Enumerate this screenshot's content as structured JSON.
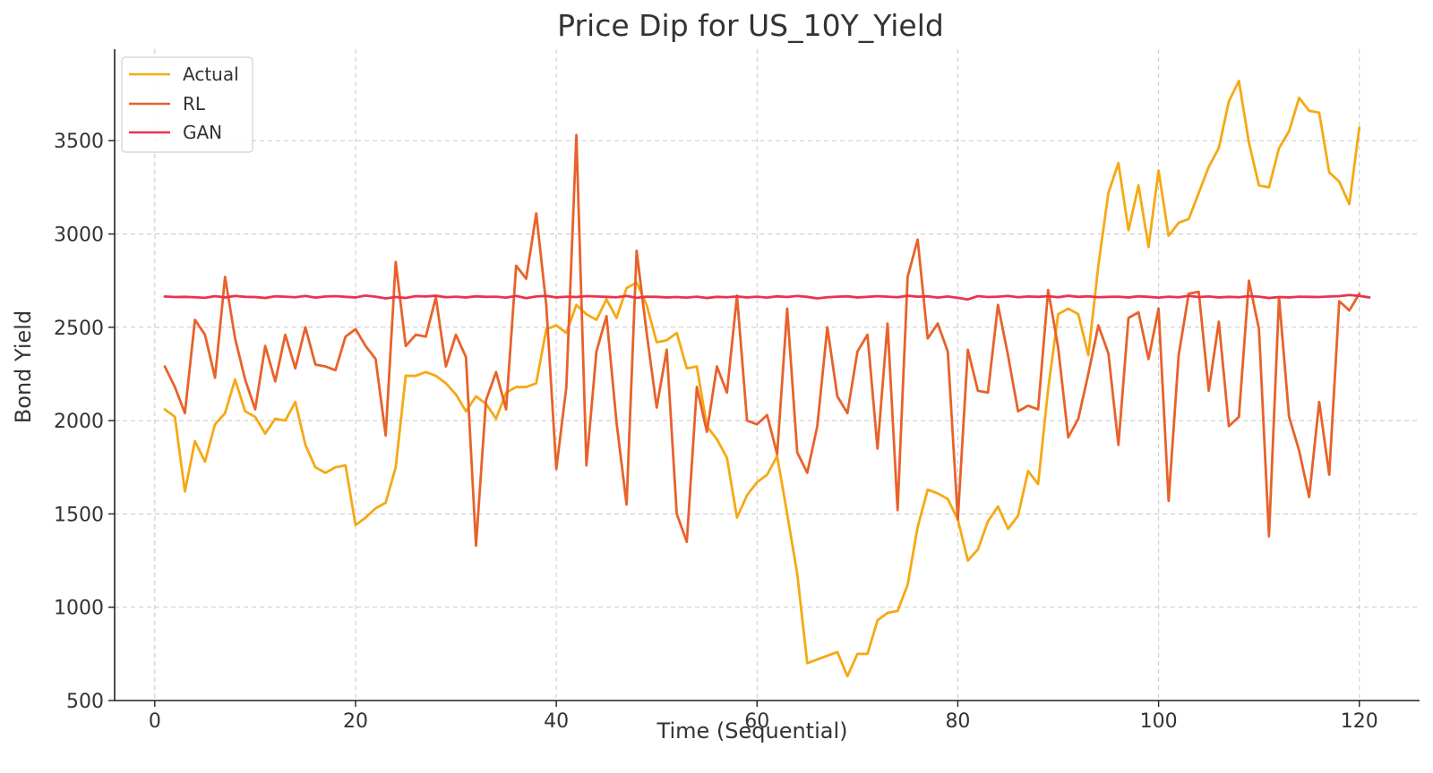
{
  "chart_data": {
    "type": "line",
    "title": "Price Dip for US_10Y_Yield",
    "xlabel": "Time (Sequential)",
    "ylabel": "Bond Yield",
    "xlim": [
      -4,
      126
    ],
    "ylim": [
      500,
      3990
    ],
    "xticks": [
      0,
      20,
      40,
      60,
      80,
      100,
      120
    ],
    "yticks": [
      500,
      1000,
      1500,
      2000,
      2500,
      3000,
      3500
    ],
    "grid": true,
    "legend": "top-left",
    "series": [
      {
        "name": "Actual",
        "color": "#f5a914",
        "x_start": 1,
        "values": [
          2060,
          2020,
          1620,
          1890,
          1780,
          1980,
          2040,
          2220,
          2050,
          2020,
          1930,
          2010,
          2000,
          2100,
          1870,
          1750,
          1720,
          1750,
          1760,
          1440,
          1480,
          1530,
          1560,
          1750,
          2240,
          2240,
          2260,
          2240,
          2200,
          2140,
          2050,
          2130,
          2090,
          2010,
          2150,
          2180,
          2180,
          2200,
          2490,
          2510,
          2470,
          2620,
          2570,
          2540,
          2650,
          2550,
          2710,
          2740,
          2620,
          2420,
          2430,
          2470,
          2280,
          2290,
          1970,
          1900,
          1800,
          1480,
          1600,
          1670,
          1710,
          1810,
          1500,
          1180,
          700,
          720,
          740,
          760,
          630,
          750,
          750,
          930,
          970,
          980,
          1120,
          1430,
          1630,
          1610,
          1580,
          1470,
          1250,
          1310,
          1460,
          1540,
          1420,
          1490,
          1730,
          1660,
          2170,
          2570,
          2600,
          2570,
          2350,
          2830,
          3220,
          3380,
          3020,
          3260,
          2930,
          3340,
          2990,
          3060,
          3080,
          3220,
          3360,
          3460,
          3710,
          3820,
          3490,
          3260,
          3250,
          3460,
          3550,
          3730,
          3660,
          3650,
          3330,
          3280,
          3160,
          3570
        ]
      },
      {
        "name": "RL",
        "color": "#e8622a",
        "x_start": 1,
        "values": [
          2290,
          2180,
          2040,
          2540,
          2460,
          2230,
          2770,
          2440,
          2220,
          2060,
          2400,
          2210,
          2460,
          2280,
          2500,
          2300,
          2290,
          2270,
          2450,
          2490,
          2400,
          2330,
          1920,
          2850,
          2400,
          2460,
          2450,
          2660,
          2290,
          2460,
          2340,
          1330,
          2110,
          2260,
          2060,
          2830,
          2760,
          3110,
          2620,
          1740,
          2180,
          3530,
          1760,
          2370,
          2560,
          1990,
          1550,
          2910,
          2470,
          2070,
          2380,
          1500,
          1350,
          2180,
          1940,
          2290,
          2150,
          2670,
          2000,
          1980,
          2030,
          1820,
          2600,
          1830,
          1720,
          1970,
          2500,
          2130,
          2040,
          2370,
          2460,
          1850,
          2520,
          1520,
          2770,
          2970,
          2440,
          2520,
          2370,
          1470,
          2380,
          2160,
          2150,
          2620,
          2350,
          2050,
          2080,
          2060,
          2700,
          2390,
          1910,
          2010,
          2250,
          2510,
          2360,
          1870,
          2550,
          2580,
          2330,
          2600,
          1570,
          2350,
          2680,
          2690,
          2160,
          2530,
          1970,
          2020,
          2750,
          2490,
          1380,
          2660,
          2020,
          1840,
          1590,
          2100,
          1710,
          2640,
          2590,
          2680
        ]
      },
      {
        "name": "GAN",
        "color": "#e8344f",
        "x_start": 1,
        "values": [
          2665,
          2662,
          2663,
          2661,
          2658,
          2667,
          2660,
          2668,
          2663,
          2662,
          2657,
          2666,
          2664,
          2661,
          2668,
          2659,
          2665,
          2667,
          2663,
          2660,
          2670,
          2664,
          2655,
          2662,
          2657,
          2667,
          2665,
          2669,
          2661,
          2664,
          2660,
          2666,
          2663,
          2664,
          2659,
          2668,
          2656,
          2665,
          2668,
          2660,
          2664,
          2662,
          2667,
          2665,
          2663,
          2661,
          2668,
          2658,
          2664,
          2663,
          2660,
          2662,
          2659,
          2664,
          2657,
          2663,
          2661,
          2665,
          2660,
          2664,
          2659,
          2666,
          2662,
          2668,
          2663,
          2655,
          2661,
          2664,
          2666,
          2660,
          2663,
          2667,
          2664,
          2661,
          2669,
          2664,
          2666,
          2659,
          2665,
          2658,
          2649,
          2667,
          2662,
          2664,
          2668,
          2661,
          2665,
          2663,
          2667,
          2661,
          2669,
          2663,
          2666,
          2661,
          2663,
          2664,
          2660,
          2666,
          2663,
          2659,
          2664,
          2661,
          2668,
          2662,
          2665,
          2660,
          2663,
          2661,
          2667,
          2664,
          2657,
          2662,
          2660,
          2664,
          2663,
          2662,
          2665,
          2667,
          2673,
          2668,
          2660
        ]
      }
    ]
  }
}
